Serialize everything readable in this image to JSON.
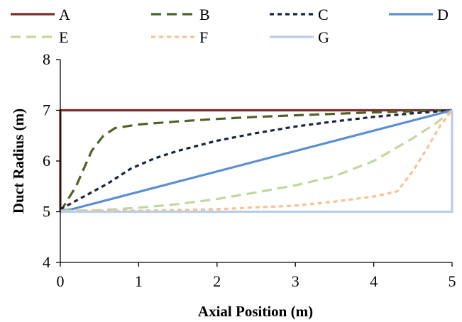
{
  "chart_data": {
    "type": "line",
    "xlabel": "Axial Position (m)",
    "ylabel": "Duct Radius (m)",
    "xlim": [
      0,
      5
    ],
    "ylim": [
      4,
      8
    ],
    "xticks": [
      "0",
      "1",
      "2",
      "3",
      "4",
      "5"
    ],
    "yticks": [
      "4",
      "5",
      "6",
      "7",
      "8"
    ],
    "grid": false,
    "legend_position": "top",
    "series": [
      {
        "name": "A",
        "color": "#7b2c2c",
        "dash": "solid",
        "x": [
          0,
          0,
          5
        ],
        "y": [
          5,
          7,
          7
        ]
      },
      {
        "name": "B",
        "color": "#4f6228",
        "dash": "long-dash",
        "x": [
          0,
          0.2,
          0.4,
          0.55,
          0.7,
          1.0,
          1.5,
          2.0,
          2.5,
          3.0,
          3.5,
          4.0,
          4.5,
          5.0
        ],
        "y": [
          5.0,
          5.5,
          6.2,
          6.5,
          6.65,
          6.72,
          6.78,
          6.83,
          6.87,
          6.9,
          6.93,
          6.96,
          6.98,
          7.0
        ]
      },
      {
        "name": "C",
        "color": "#17253d",
        "dash": "short-dash",
        "x": [
          0,
          0.3,
          0.6,
          0.9,
          1.2,
          1.5,
          2.0,
          2.5,
          3.0,
          3.5,
          4.0,
          4.5,
          5.0
        ],
        "y": [
          5.05,
          5.3,
          5.55,
          5.85,
          6.05,
          6.2,
          6.4,
          6.55,
          6.68,
          6.78,
          6.87,
          6.94,
          7.0
        ]
      },
      {
        "name": "D",
        "color": "#5b8fd0",
        "dash": "solid",
        "x": [
          0,
          0.15,
          5.0
        ],
        "y": [
          5.02,
          5.05,
          7.0
        ]
      },
      {
        "name": "E",
        "color": "#c3d69b",
        "dash": "long-dash",
        "x": [
          0,
          0.5,
          1.0,
          1.5,
          2.0,
          2.5,
          3.0,
          3.5,
          4.0,
          4.5,
          4.8,
          5.0
        ],
        "y": [
          5.02,
          5.03,
          5.08,
          5.15,
          5.25,
          5.38,
          5.52,
          5.7,
          6.0,
          6.45,
          6.75,
          7.0
        ]
      },
      {
        "name": "F",
        "color": "#fac090",
        "dash": "short-dash",
        "x": [
          0,
          0.5,
          1.0,
          2.0,
          3.0,
          3.5,
          4.0,
          4.3,
          4.5,
          4.7,
          4.85,
          5.0
        ],
        "y": [
          5.02,
          5.02,
          5.02,
          5.05,
          5.12,
          5.2,
          5.3,
          5.4,
          5.8,
          6.3,
          6.7,
          7.0
        ]
      },
      {
        "name": "G",
        "color": "#b9cde5",
        "dash": "solid",
        "x": [
          0,
          5,
          5
        ],
        "y": [
          5,
          5,
          7
        ]
      }
    ]
  }
}
